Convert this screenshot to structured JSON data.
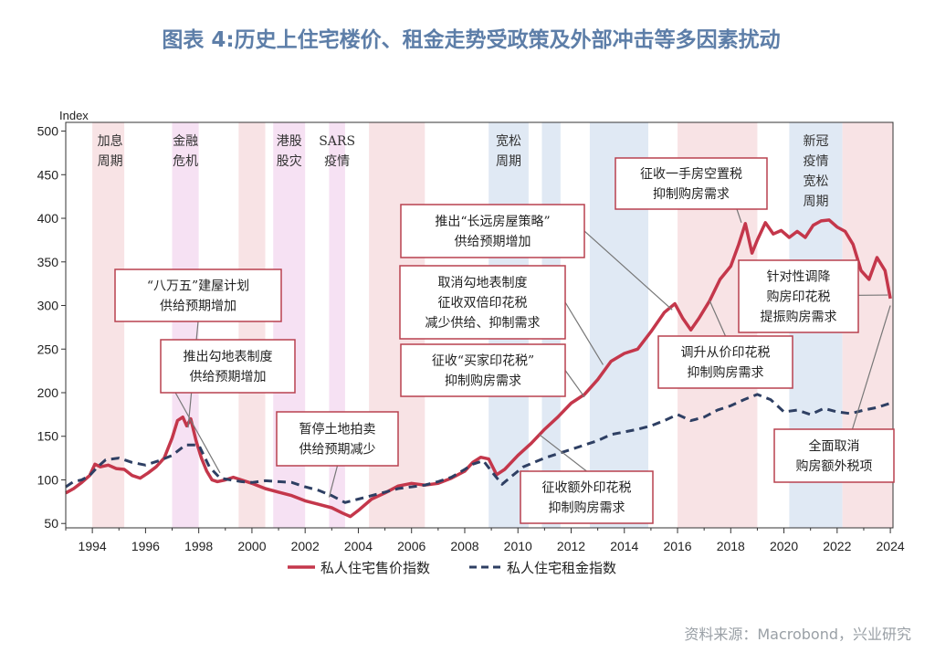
{
  "chart_data": {
    "type": "line",
    "title": "图表 4:历史上住宅楼价、租金走势受政策及外部冲击等多因素扰动",
    "ylabel": "Index",
    "xlim": [
      1993,
      2024.1
    ],
    "ylim": [
      45,
      510
    ],
    "y_ticks": [
      50,
      100,
      150,
      200,
      250,
      300,
      350,
      400,
      450,
      500
    ],
    "x_ticks": [
      1994,
      1996,
      1998,
      2000,
      2002,
      2004,
      2006,
      2008,
      2010,
      2012,
      2014,
      2016,
      2018,
      2020,
      2022,
      2024
    ],
    "colors": {
      "price": "#c4374b",
      "rent": "#2e3f63",
      "band_red": "#f8e3e5",
      "band_pink": "#f6e1f3",
      "band_blue": "#e0e9f4",
      "box": "#b8414f"
    },
    "series": [
      {
        "name": "私人住宅售价指数",
        "style": "solid",
        "x": [
          1993.0,
          1993.3,
          1993.6,
          1993.9,
          1994.1,
          1994.3,
          1994.6,
          1994.9,
          1995.2,
          1995.5,
          1995.8,
          1996.1,
          1996.4,
          1996.7,
          1997.0,
          1997.2,
          1997.4,
          1997.55,
          1997.7,
          1997.9,
          1998.1,
          1998.3,
          1998.5,
          1998.7,
          1999.0,
          1999.3,
          1999.6,
          2000.0,
          2000.5,
          2001.0,
          2001.5,
          2002.0,
          2002.5,
          2003.0,
          2003.4,
          2003.7,
          2004.0,
          2004.5,
          2005.0,
          2005.5,
          2006.0,
          2006.5,
          2007.0,
          2007.5,
          2008.0,
          2008.3,
          2008.6,
          2008.9,
          2009.2,
          2009.5,
          2010.0,
          2010.5,
          2011.0,
          2011.5,
          2012.0,
          2012.5,
          2013.0,
          2013.5,
          2014.0,
          2014.5,
          2015.0,
          2015.5,
          2015.9,
          2016.2,
          2016.5,
          2016.8,
          2017.2,
          2017.6,
          2018.0,
          2018.3,
          2018.55,
          2018.8,
          2019.0,
          2019.3,
          2019.6,
          2019.9,
          2020.2,
          2020.5,
          2020.8,
          2021.1,
          2021.4,
          2021.7,
          2022.0,
          2022.3,
          2022.6,
          2022.9,
          2023.2,
          2023.5,
          2023.8,
          2024.0
        ],
        "values": [
          85,
          90,
          97,
          105,
          118,
          115,
          117,
          113,
          112,
          105,
          102,
          108,
          115,
          125,
          148,
          168,
          172,
          162,
          170,
          145,
          125,
          110,
          100,
          98,
          100,
          103,
          100,
          96,
          90,
          86,
          82,
          76,
          72,
          68,
          62,
          58,
          65,
          78,
          85,
          93,
          96,
          94,
          96,
          102,
          110,
          120,
          126,
          124,
          106,
          112,
          128,
          142,
          158,
          172,
          188,
          198,
          215,
          236,
          245,
          250,
          270,
          292,
          302,
          285,
          272,
          285,
          305,
          330,
          345,
          370,
          394,
          360,
          375,
          395,
          382,
          386,
          378,
          385,
          378,
          392,
          397,
          398,
          390,
          385,
          370,
          340,
          330,
          355,
          340,
          308
        ]
      },
      {
        "name": "私人住宅租金指数",
        "style": "dashed",
        "x": [
          1993.0,
          1993.3,
          1993.6,
          1993.9,
          1994.2,
          1994.5,
          1995.0,
          1995.5,
          1996.0,
          1996.5,
          1997.0,
          1997.5,
          1998.0,
          1998.4,
          1998.8,
          1999.2,
          1999.6,
          2000.0,
          2000.5,
          2001.0,
          2001.5,
          2002.0,
          2002.5,
          2003.0,
          2003.5,
          2004.0,
          2004.5,
          2005.0,
          2005.5,
          2006.0,
          2006.5,
          2007.0,
          2007.5,
          2008.0,
          2008.3,
          2008.7,
          2009.0,
          2009.4,
          2009.8,
          2010.2,
          2010.6,
          2011.0,
          2011.5,
          2012.0,
          2012.5,
          2013.0,
          2013.5,
          2014.0,
          2014.5,
          2015.0,
          2015.5,
          2016.0,
          2016.5,
          2017.0,
          2017.5,
          2018.0,
          2018.5,
          2019.0,
          2019.5,
          2020.0,
          2020.5,
          2021.0,
          2021.5,
          2022.0,
          2022.5,
          2023.0,
          2023.5,
          2024.0
        ],
        "values": [
          92,
          98,
          100,
          105,
          115,
          123,
          125,
          120,
          117,
          122,
          128,
          140,
          140,
          115,
          102,
          100,
          98,
          97,
          99,
          98,
          97,
          92,
          88,
          82,
          74,
          78,
          82,
          86,
          90,
          92,
          94,
          98,
          103,
          112,
          118,
          122,
          110,
          95,
          105,
          115,
          120,
          125,
          130,
          135,
          140,
          145,
          152,
          155,
          158,
          162,
          168,
          175,
          168,
          172,
          180,
          185,
          192,
          198,
          192,
          178,
          180,
          175,
          182,
          178,
          176,
          180,
          183,
          188
        ]
      }
    ],
    "bands": [
      {
        "start": 1994.0,
        "end": 1995.2,
        "color": "red",
        "label": [
          "加息",
          "周期"
        ]
      },
      {
        "start": 1997.0,
        "end": 1998.0,
        "color": "pink",
        "label": [
          "金融",
          "危机"
        ]
      },
      {
        "start": 1999.5,
        "end": 2000.5,
        "color": "red",
        "label": []
      },
      {
        "start": 2000.8,
        "end": 2002.0,
        "color": "pink",
        "label": [
          "港股",
          "股灾"
        ]
      },
      {
        "start": 2002.9,
        "end": 2003.5,
        "color": "pink",
        "label": [
          "SARS",
          "疫情"
        ]
      },
      {
        "start": 2004.4,
        "end": 2006.5,
        "color": "red",
        "label": []
      },
      {
        "start": 2008.9,
        "end": 2010.4,
        "color": "blue",
        "label": [
          "宽松",
          "周期"
        ]
      },
      {
        "start": 2010.9,
        "end": 2011.6,
        "color": "blue",
        "label": []
      },
      {
        "start": 2012.7,
        "end": 2014.9,
        "color": "blue",
        "label": []
      },
      {
        "start": 2016.0,
        "end": 2019.0,
        "color": "red",
        "label": []
      },
      {
        "start": 2020.2,
        "end": 2022.2,
        "color": "blue",
        "label": [
          "新冠",
          "疫情",
          "宽松",
          "周期"
        ]
      },
      {
        "start": 2022.2,
        "end": 2024.1,
        "color": "red",
        "label": []
      }
    ],
    "annotations": [
      {
        "lines": [
          "“八万五”建屋计划",
          "供给预期增加"
        ],
        "target": [
          1997.6,
          160
        ]
      },
      {
        "lines": [
          "推出勾地表制度",
          "供给预期增加"
        ],
        "target": [
          1998.8,
          108
        ]
      },
      {
        "lines": [
          "暂停土地拍卖",
          "供给预期减少"
        ],
        "target": [
          2002.9,
          80
        ]
      },
      {
        "lines": [
          "推出“长远房屋策略”",
          "供给预期增加"
        ],
        "target": [
          2015.8,
          295
        ]
      },
      {
        "lines": [
          "取消勾地表制度",
          "征收双倍印花税",
          "减少供给、抑制需求"
        ],
        "target": [
          2013.2,
          232
        ]
      },
      {
        "lines": [
          "征收“买家印花税”",
          "抑制购房需求"
        ],
        "target": [
          2012.5,
          195
        ]
      },
      {
        "lines": [
          "征收额外印花税",
          "抑制购房需求"
        ],
        "target": [
          2010.8,
          152
        ]
      },
      {
        "lines": [
          "征收一手房空置税",
          "抑制购房需求"
        ],
        "target": [
          2018.4,
          395
        ]
      },
      {
        "lines": [
          "调升从价印花税",
          "抑制购房需求"
        ],
        "target": [
          2017.2,
          306
        ]
      },
      {
        "lines": [
          "针对性调降",
          "购房印花税",
          "提振购房需求"
        ],
        "target": [
          2023.9,
          312
        ]
      },
      {
        "lines": [
          "全面取消",
          "购房额外税项"
        ],
        "target": [
          2024.0,
          300
        ]
      }
    ]
  },
  "legend": {
    "price_label": "私人住宅售价指数",
    "rent_label": "私人住宅租金指数"
  },
  "source": "资料来源：Macrobond，兴业研究"
}
